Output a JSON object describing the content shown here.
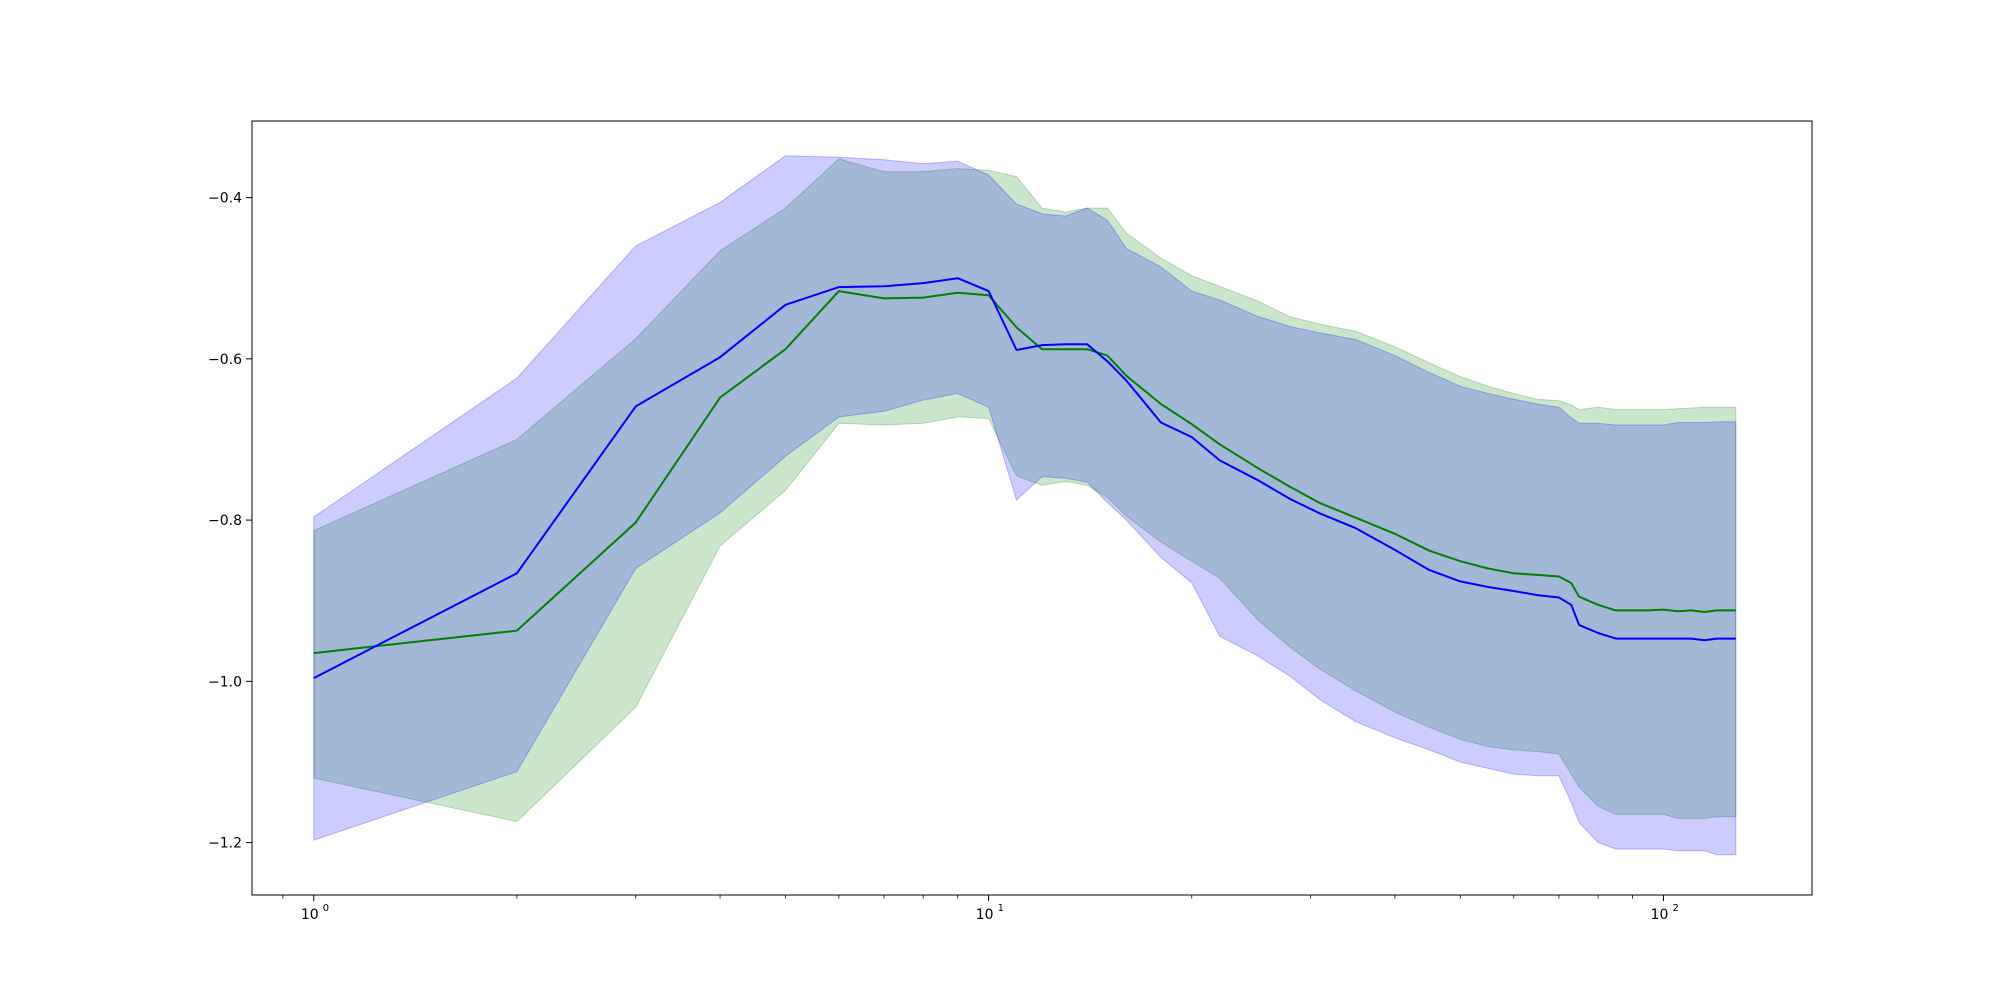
{
  "chart_data": {
    "type": "line",
    "title": "",
    "xlabel": "",
    "ylabel": "",
    "xscale": "log",
    "xlim": [
      0.81,
      166
    ],
    "ylim": [
      -1.265,
      -0.305
    ],
    "grid": false,
    "legend": "none",
    "y_ticks": [
      {
        "value": -0.4,
        "label": "−0.4"
      },
      {
        "value": -0.6,
        "label": "−0.6"
      },
      {
        "value": -0.8,
        "label": "−0.8"
      },
      {
        "value": -1.0,
        "label": "−1.0"
      },
      {
        "value": -1.2,
        "label": "−1.2"
      }
    ],
    "x_ticks": [
      {
        "value": 1,
        "base": "10",
        "exp": "0"
      },
      {
        "value": 10,
        "base": "10",
        "exp": "1"
      },
      {
        "value": 100,
        "base": "10",
        "exp": "2"
      }
    ],
    "series": [
      {
        "color": "#008000",
        "band_color": "#008000",
        "x": [
          1,
          2,
          3,
          4,
          5,
          6,
          7,
          8,
          9,
          10,
          11,
          12,
          13,
          14,
          15,
          16,
          18,
          20,
          22,
          25,
          28,
          31,
          35,
          40,
          45,
          50,
          55,
          60,
          65,
          70,
          73,
          75,
          80,
          85,
          90,
          95,
          100,
          105,
          110,
          115,
          120,
          128
        ],
        "mean": [
          -0.965,
          -0.937,
          -0.803,
          -0.648,
          -0.588,
          -0.516,
          -0.525,
          -0.524,
          -0.518,
          -0.521,
          -0.561,
          -0.588,
          -0.588,
          -0.588,
          -0.596,
          -0.621,
          -0.656,
          -0.681,
          -0.706,
          -0.735,
          -0.759,
          -0.779,
          -0.797,
          -0.817,
          -0.838,
          -0.851,
          -0.86,
          -0.866,
          -0.868,
          -0.87,
          -0.878,
          -0.895,
          -0.905,
          -0.912,
          -0.912,
          -0.912,
          -0.911,
          -0.913,
          -0.912,
          -0.914,
          -0.912,
          -0.912
        ],
        "upper": [
          -0.813,
          -0.7,
          -0.575,
          -0.466,
          -0.413,
          -0.352,
          -0.368,
          -0.368,
          -0.364,
          -0.366,
          -0.374,
          -0.413,
          -0.418,
          -0.413,
          -0.413,
          -0.444,
          -0.475,
          -0.497,
          -0.51,
          -0.528,
          -0.548,
          -0.557,
          -0.566,
          -0.585,
          -0.605,
          -0.622,
          -0.634,
          -0.643,
          -0.65,
          -0.652,
          -0.657,
          -0.663,
          -0.66,
          -0.663,
          -0.663,
          -0.663,
          -0.663,
          -0.662,
          -0.661,
          -0.66,
          -0.66,
          -0.66
        ],
        "lower": [
          -1.12,
          -1.174,
          -1.032,
          -0.832,
          -0.763,
          -0.68,
          -0.682,
          -0.68,
          -0.672,
          -0.674,
          -0.745,
          -0.757,
          -0.752,
          -0.757,
          -0.772,
          -0.795,
          -0.827,
          -0.851,
          -0.872,
          -0.923,
          -0.958,
          -0.985,
          -1.012,
          -1.038,
          -1.057,
          -1.072,
          -1.081,
          -1.085,
          -1.087,
          -1.09,
          -1.115,
          -1.131,
          -1.155,
          -1.165,
          -1.165,
          -1.165,
          -1.165,
          -1.17,
          -1.17,
          -1.17,
          -1.168,
          -1.168
        ]
      },
      {
        "color": "#0000ff",
        "band_color": "#0000ff",
        "x": [
          1,
          2,
          3,
          4,
          5,
          6,
          7,
          8,
          9,
          10,
          11,
          12,
          13,
          14,
          15,
          16,
          18,
          20,
          22,
          25,
          28,
          31,
          35,
          40,
          45,
          50,
          55,
          60,
          65,
          70,
          73,
          75,
          80,
          85,
          90,
          95,
          100,
          105,
          110,
          115,
          120,
          128
        ],
        "mean": [
          -0.996,
          -0.866,
          -0.659,
          -0.598,
          -0.533,
          -0.511,
          -0.51,
          -0.506,
          -0.5,
          -0.516,
          -0.589,
          -0.583,
          -0.582,
          -0.582,
          -0.603,
          -0.627,
          -0.679,
          -0.697,
          -0.726,
          -0.75,
          -0.774,
          -0.792,
          -0.81,
          -0.837,
          -0.862,
          -0.876,
          -0.883,
          -0.888,
          -0.893,
          -0.896,
          -0.905,
          -0.93,
          -0.94,
          -0.947,
          -0.947,
          -0.947,
          -0.947,
          -0.947,
          -0.947,
          -0.949,
          -0.947,
          -0.947
        ],
        "upper": [
          -0.796,
          -0.624,
          -0.46,
          -0.406,
          -0.348,
          -0.35,
          -0.353,
          -0.358,
          -0.355,
          -0.372,
          -0.408,
          -0.42,
          -0.423,
          -0.413,
          -0.428,
          -0.463,
          -0.486,
          -0.516,
          -0.527,
          -0.547,
          -0.56,
          -0.568,
          -0.576,
          -0.596,
          -0.617,
          -0.634,
          -0.643,
          -0.65,
          -0.656,
          -0.66,
          -0.673,
          -0.68,
          -0.68,
          -0.682,
          -0.682,
          -0.682,
          -0.682,
          -0.679,
          -0.679,
          -0.679,
          -0.678,
          -0.678
        ],
        "lower": [
          -1.197,
          -1.112,
          -0.86,
          -0.791,
          -0.721,
          -0.672,
          -0.665,
          -0.651,
          -0.643,
          -0.66,
          -0.775,
          -0.746,
          -0.748,
          -0.753,
          -0.778,
          -0.8,
          -0.846,
          -0.878,
          -0.944,
          -0.968,
          -0.994,
          -1.023,
          -1.05,
          -1.07,
          -1.085,
          -1.1,
          -1.108,
          -1.115,
          -1.117,
          -1.117,
          -1.15,
          -1.175,
          -1.2,
          -1.208,
          -1.208,
          -1.208,
          -1.208,
          -1.21,
          -1.21,
          -1.21,
          -1.215,
          -1.215
        ]
      }
    ]
  }
}
